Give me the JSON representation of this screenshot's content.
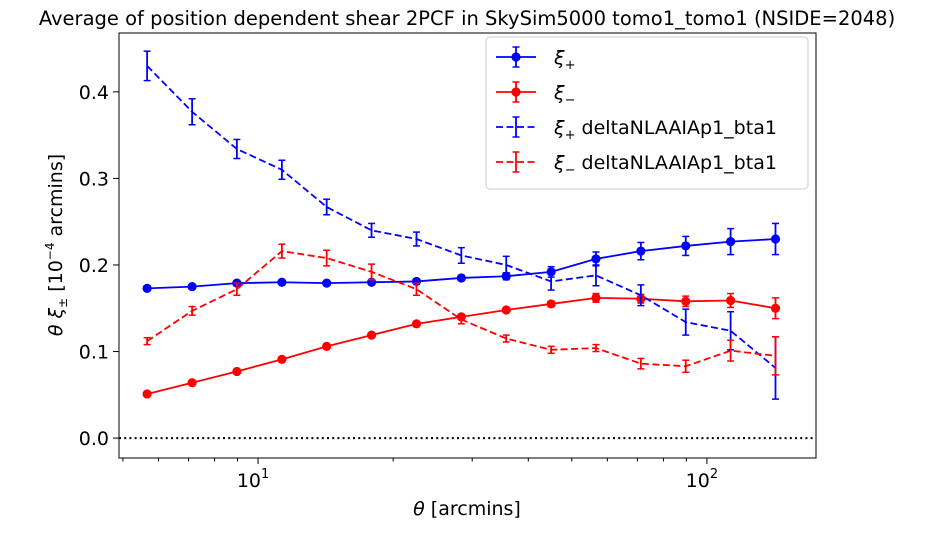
{
  "chart_data": {
    "type": "line",
    "title": "Average of position dependent shear 2PCF in SkySim5000 tomo1_tomo1 (NSIDE=2048)",
    "xlabel_prefix": "θ",
    "xlabel_rest": " [arcmins]",
    "ylabel_prefix": "θ ξ",
    "ylabel_sub": "±",
    "ylabel_mid": " [10",
    "ylabel_sup": "−4",
    "ylabel_rest": " arcmins]",
    "xscale": "log",
    "xlim": [
      4.9,
      175
    ],
    "ylim": [
      -0.023,
      0.468
    ],
    "xticks": [
      {
        "value": 10,
        "base": "10",
        "exp": "1"
      },
      {
        "value": 100,
        "base": "10",
        "exp": "2"
      }
    ],
    "yticks": [
      {
        "value": 0.0,
        "label": "0.0"
      },
      {
        "value": 0.1,
        "label": "0.1"
      },
      {
        "value": 0.2,
        "label": "0.2"
      },
      {
        "value": 0.3,
        "label": "0.3"
      },
      {
        "value": 0.4,
        "label": "0.4"
      }
    ],
    "reference_line": {
      "y": 0.0,
      "style": "dotted",
      "color": "#000000"
    },
    "legend_position": "top-right",
    "x": [
      5.66,
      7.13,
      8.97,
      11.3,
      14.22,
      17.9,
      22.54,
      28.37,
      35.72,
      44.97,
      56.6,
      71.26,
      89.71,
      112.93,
      142.17
    ],
    "series": [
      {
        "name": "ξ",
        "name_sub": "+",
        "name_rest": "",
        "color": "#0000ff",
        "linestyle": "solid",
        "marker": "circle",
        "values": [
          0.173,
          0.175,
          0.179,
          0.18,
          0.179,
          0.18,
          0.181,
          0.185,
          0.187,
          0.192,
          0.207,
          0.216,
          0.222,
          0.227,
          0.23
        ],
        "errors": [
          0.002,
          0.002,
          0.003,
          0.002,
          0.002,
          0.002,
          0.003,
          0.003,
          0.004,
          0.006,
          0.008,
          0.01,
          0.011,
          0.015,
          0.018
        ]
      },
      {
        "name": "ξ",
        "name_sub": "−",
        "name_rest": "",
        "color": "#ff0000",
        "linestyle": "solid",
        "marker": "circle",
        "values": [
          0.051,
          0.064,
          0.077,
          0.091,
          0.106,
          0.119,
          0.132,
          0.14,
          0.148,
          0.155,
          0.162,
          0.161,
          0.158,
          0.159,
          0.15
        ],
        "errors": [
          0.001,
          0.001,
          0.001,
          0.001,
          0.001,
          0.001,
          0.002,
          0.003,
          0.002,
          0.003,
          0.005,
          0.005,
          0.006,
          0.008,
          0.012
        ]
      },
      {
        "name": "ξ",
        "name_sub": "+",
        "name_rest": " deltaNLAAIAp1_bta1",
        "color": "#0000ff",
        "linestyle": "dashed",
        "marker": "none",
        "values": [
          0.43,
          0.377,
          0.334,
          0.31,
          0.267,
          0.24,
          0.23,
          0.211,
          0.2,
          0.181,
          0.188,
          0.165,
          0.134,
          0.124,
          0.081
        ],
        "errors": [
          0.017,
          0.015,
          0.011,
          0.011,
          0.009,
          0.008,
          0.008,
          0.009,
          0.01,
          0.01,
          0.012,
          0.012,
          0.015,
          0.022,
          0.036
        ]
      },
      {
        "name": "ξ",
        "name_sub": "−",
        "name_rest": " deltaNLAAIAp1_bta1",
        "color": "#ff0000",
        "linestyle": "dashed",
        "marker": "none",
        "values": [
          0.112,
          0.147,
          0.172,
          0.216,
          0.208,
          0.192,
          0.172,
          0.137,
          0.115,
          0.102,
          0.104,
          0.086,
          0.083,
          0.101,
          0.095
        ],
        "errors": [
          0.004,
          0.005,
          0.007,
          0.008,
          0.009,
          0.009,
          0.007,
          0.005,
          0.004,
          0.004,
          0.004,
          0.006,
          0.007,
          0.012,
          0.022
        ]
      }
    ]
  }
}
